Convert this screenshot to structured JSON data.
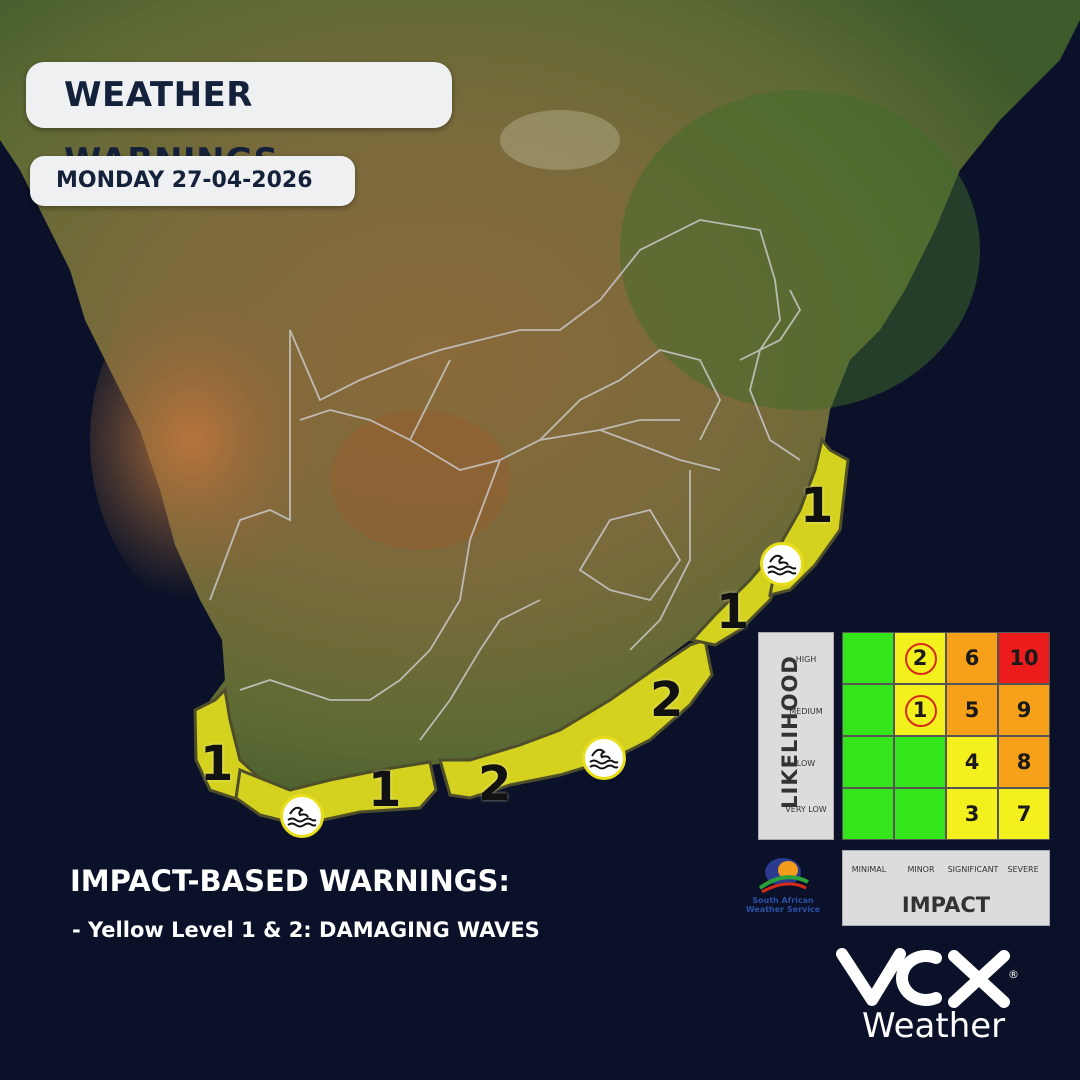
{
  "header": {
    "title": "WEATHER WARNINGS",
    "date": "MONDAY 27-04-2026"
  },
  "warnings": {
    "heading": "IMPACT-BASED WARNINGS:",
    "line": "- Yellow Level 1 & 2: DAMAGING WAVES"
  },
  "map_labels": {
    "west_coast_level": "1",
    "south_coast_west_level": "1",
    "south_coast_mid_level": "2",
    "east_cape_level": "2",
    "transkei_level": "1",
    "kzn_level": "1"
  },
  "icons": {
    "wave": "waves-icon"
  },
  "colors": {
    "warning_zone": "#d4d21f",
    "green": "#33e51a",
    "yellow": "#f4f01e",
    "orange": "#f7a11b",
    "red": "#ec1c1c",
    "ocean": "#0a1128"
  },
  "matrix": {
    "likelihood_title": "LIKELIHOOD",
    "impact_title": "IMPACT",
    "likelihood_labels": [
      "HIGH",
      "MEDIUM",
      "LOW",
      "VERY LOW"
    ],
    "impact_labels": [
      "MINIMAL",
      "MINOR",
      "SIGNIFICANT",
      "SEVERE"
    ],
    "rows": [
      [
        "",
        "2",
        "6",
        "10"
      ],
      [
        "",
        "1",
        "5",
        "9"
      ],
      [
        "",
        "",
        "4",
        "8"
      ],
      [
        "",
        "",
        "3",
        "7"
      ]
    ],
    "circled": [
      "2",
      "1"
    ]
  },
  "logos": {
    "saws_line1": "South African",
    "saws_line2": "Weather Service",
    "vox_brand": "Weather",
    "vox_reg": "®"
  }
}
